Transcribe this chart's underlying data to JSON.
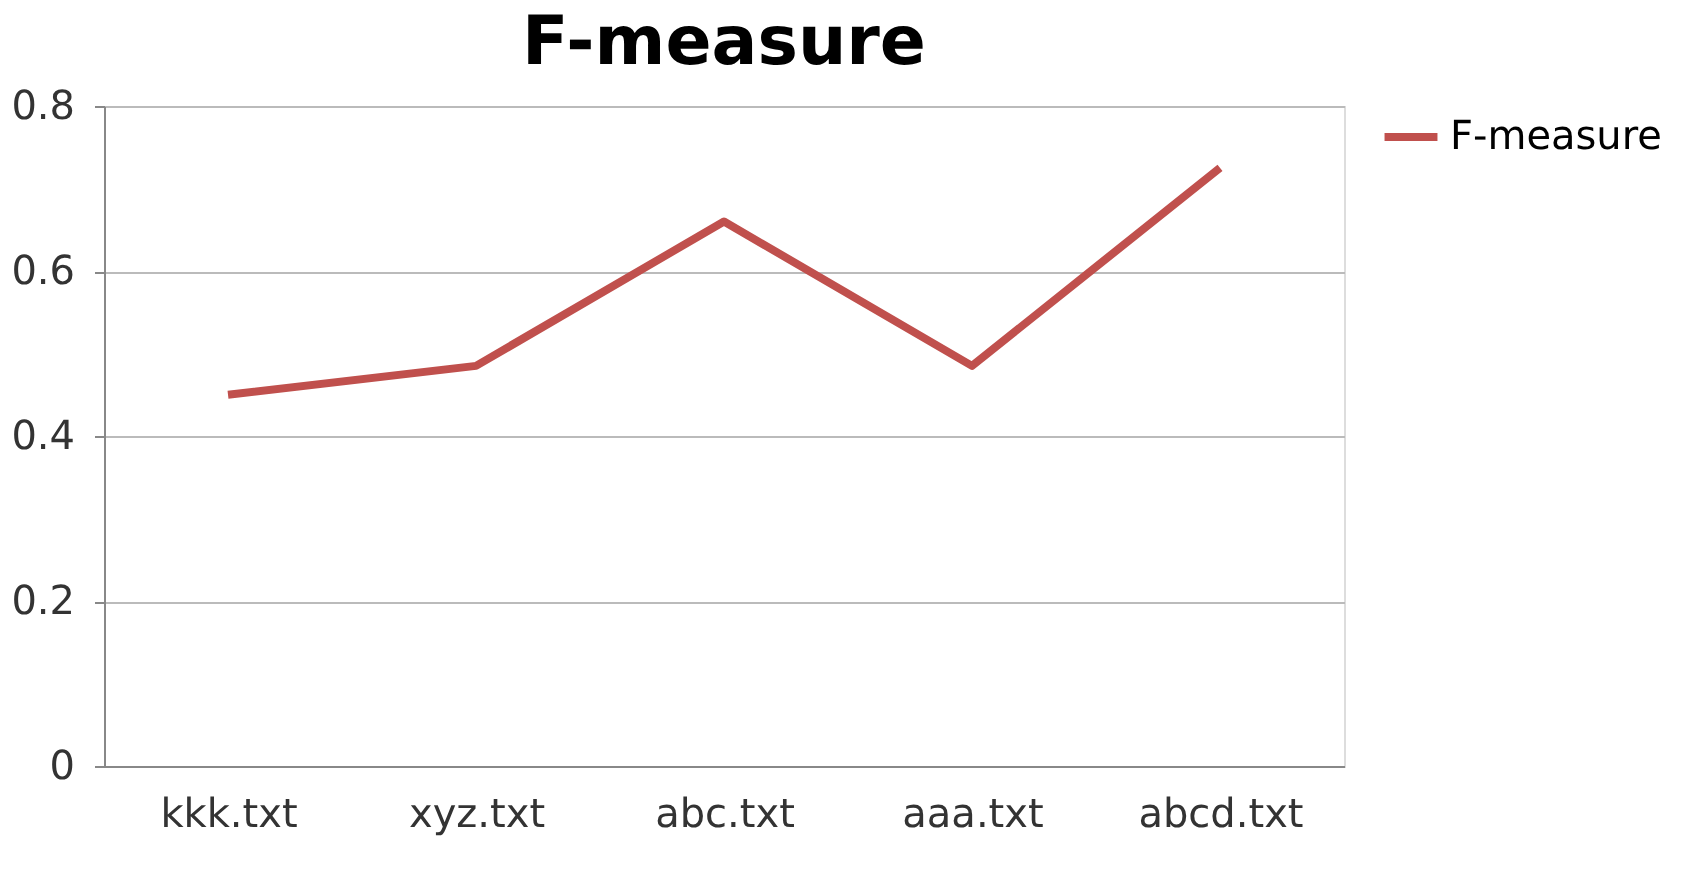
{
  "chart_data": {
    "type": "line",
    "title": "F-measure",
    "categories": [
      "kkk.txt",
      "xyz.txt",
      "abc.txt",
      "aaa.txt",
      "abcd.txt"
    ],
    "series": [
      {
        "name": "F-measure",
        "color": "#c0504d",
        "values": [
          0.45,
          0.485,
          0.66,
          0.485,
          0.725
        ]
      }
    ],
    "ylim": [
      0,
      0.8
    ],
    "yticks": [
      0,
      0.2,
      0.4,
      0.6,
      0.8
    ],
    "grid": "y",
    "legend": "right",
    "marker": "none",
    "line_style": "solid"
  }
}
